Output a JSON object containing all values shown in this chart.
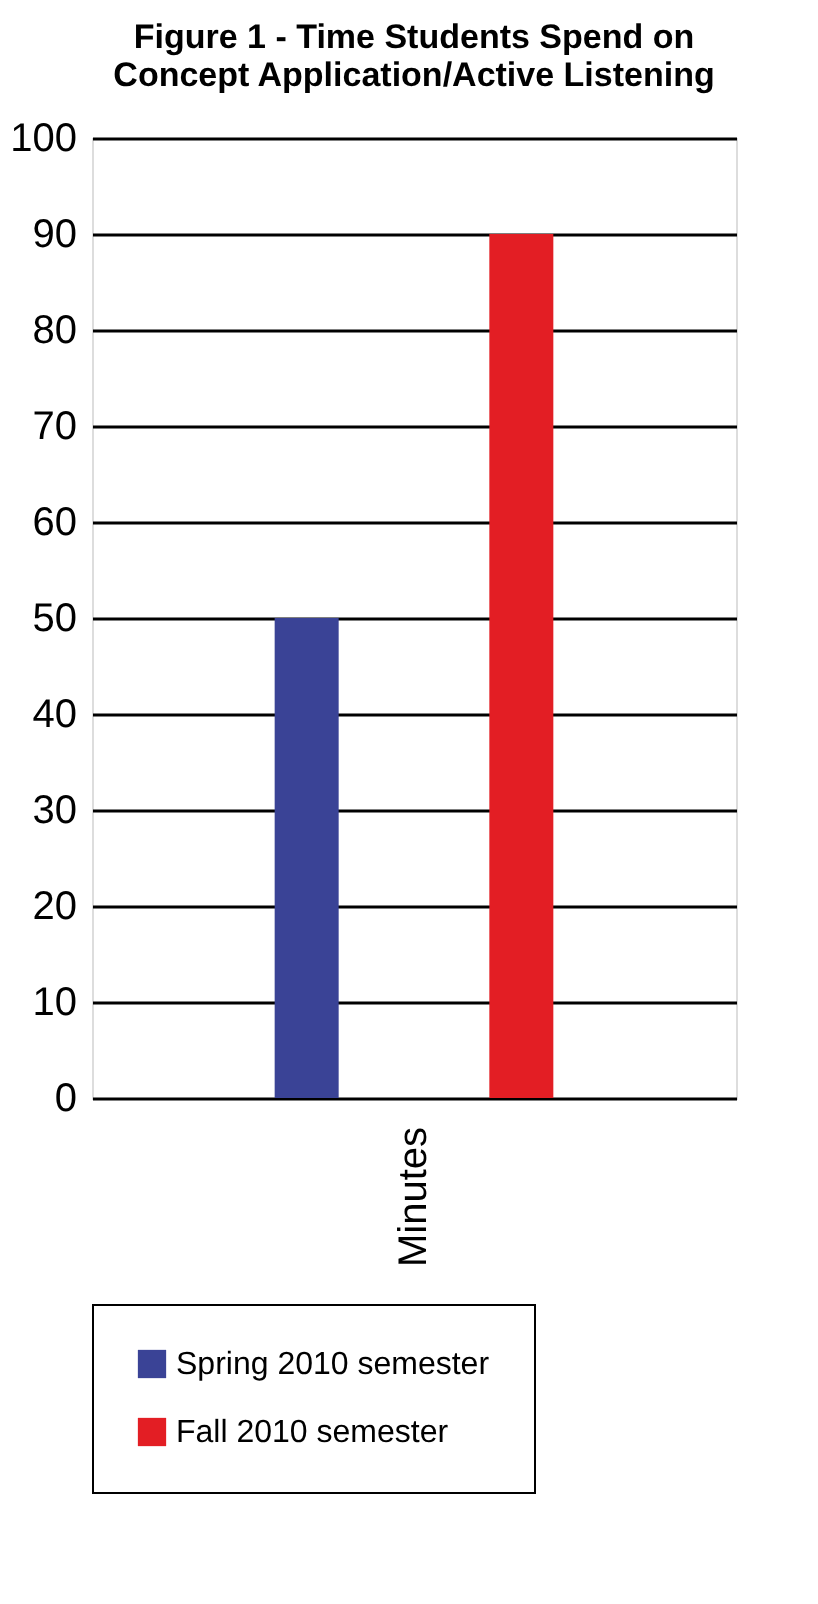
{
  "chart_data": {
    "type": "bar",
    "title": [
      "Figure 1 - Time Students Spend on",
      "Concept Application/Active Listening"
    ],
    "categories": [
      "Minutes"
    ],
    "series": [
      {
        "name": "Spring 2010 semester",
        "color": "#3a4396",
        "values": [
          50
        ]
      },
      {
        "name": "Fall 2010 semester",
        "color": "#e31e24",
        "values": [
          90
        ]
      }
    ],
    "ylim": [
      0,
      100
    ],
    "yticks": [
      0,
      10,
      20,
      30,
      40,
      50,
      60,
      70,
      80,
      90,
      100
    ],
    "grid": "y",
    "legend": "bottom"
  }
}
